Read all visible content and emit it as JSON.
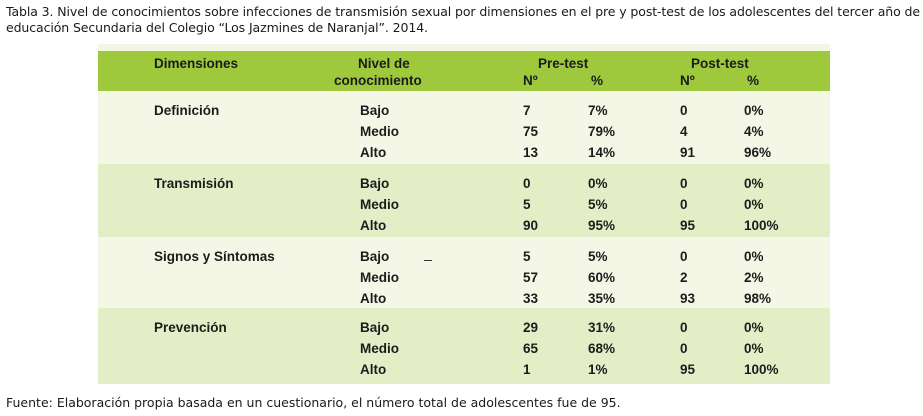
{
  "caption": "Tabla 3. Nivel de conocimientos sobre infecciones de transmisión sexual por dimensiones en el pre y post-test de los adolescentes del tercer año de educación Secundaria del Colegio “Los Jazmines de Naranjal”. 2014.",
  "table": {
    "headers": {
      "dimensiones": "Dimensiones",
      "nivel_line1": "Nivel de",
      "nivel_line2": "conocimiento",
      "pretest": "Pre-test",
      "posttest": "Post-test",
      "n_symbol": "Nº",
      "pct_symbol": "%"
    },
    "groups": [
      {
        "dimension": "Definición",
        "rows": [
          {
            "nivel": "Bajo",
            "pre_n": "7",
            "pre_pct": "7%",
            "post_n": "0",
            "post_pct": "0%"
          },
          {
            "nivel": "Medio",
            "pre_n": "75",
            "pre_pct": "79%",
            "post_n": "4",
            "post_pct": "4%"
          },
          {
            "nivel": "Alto",
            "pre_n": "13",
            "pre_pct": "14%",
            "post_n": "91",
            "post_pct": "96%"
          }
        ]
      },
      {
        "dimension": "Transmisión",
        "rows": [
          {
            "nivel": "Bajo",
            "pre_n": "0",
            "pre_pct": "0%",
            "post_n": "0",
            "post_pct": "0%"
          },
          {
            "nivel": "Medio",
            "pre_n": "5",
            "pre_pct": "5%",
            "post_n": "0",
            "post_pct": "0%"
          },
          {
            "nivel": "Alto",
            "pre_n": "90",
            "pre_pct": "95%",
            "post_n": "95",
            "post_pct": "100%"
          }
        ]
      },
      {
        "dimension": "Signos y Síntomas",
        "rows": [
          {
            "nivel": "Bajo",
            "pre_n": "5",
            "pre_pct": "5%",
            "post_n": "0",
            "post_pct": "0%"
          },
          {
            "nivel": "Medio",
            "pre_n": "57",
            "pre_pct": "60%",
            "post_n": "2",
            "post_pct": "2%"
          },
          {
            "nivel": "Alto",
            "pre_n": "33",
            "pre_pct": "35%",
            "post_n": "93",
            "post_pct": "98%"
          }
        ]
      },
      {
        "dimension": "Prevención",
        "rows": [
          {
            "nivel": "Bajo",
            "pre_n": "29",
            "pre_pct": "31%",
            "post_n": "0",
            "post_pct": "0%"
          },
          {
            "nivel": "Medio",
            "pre_n": "65",
            "pre_pct": "68%",
            "post_n": "0",
            "post_pct": "0%"
          },
          {
            "nivel": "Alto",
            "pre_n": "1",
            "pre_pct": "1%",
            "post_n": "95",
            "post_pct": "100%"
          }
        ]
      }
    ]
  },
  "colors": {
    "header": "#9ec93d",
    "band_light": "#f4f7e6",
    "band_dark": "#e3edc6"
  },
  "footer": "Fuente: Elaboración propia basada en un cuestionario, el número total de adolescentes fue de 95."
}
